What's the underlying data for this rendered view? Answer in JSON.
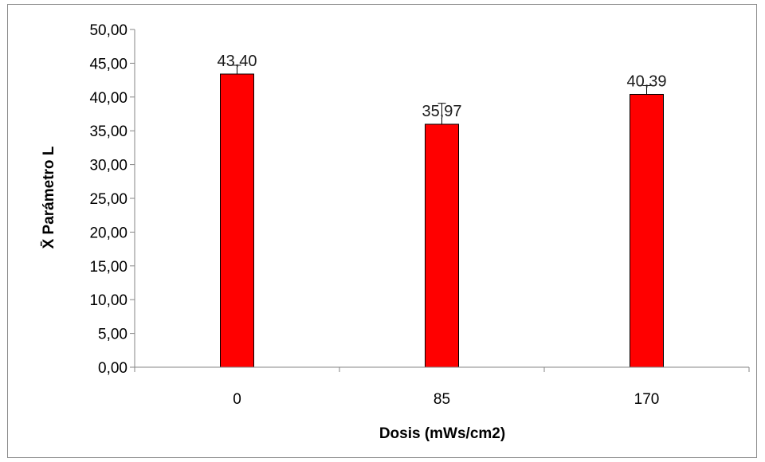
{
  "chart_data": {
    "type": "bar",
    "title": "",
    "xlabel": "Dosis (mWs/cm2)",
    "ylabel": "X̄ Parámetro L",
    "categories": [
      "0",
      "85",
      "170"
    ],
    "values": [
      43.4,
      35.97,
      40.39
    ],
    "value_labels": [
      "43,40",
      "35,97",
      "40,39"
    ],
    "error_plus": [
      1.3,
      3.1,
      1.3
    ],
    "ylim": [
      0,
      50
    ],
    "y_tick_labels": [
      "0,00",
      "5,00",
      "10,00",
      "15,00",
      "20,00",
      "25,00",
      "30,00",
      "35,00",
      "40,00",
      "45,00",
      "50,00"
    ],
    "grid": false,
    "legend": "none",
    "bar_color": "#ff0000",
    "bar_edge_color": "#000000"
  }
}
